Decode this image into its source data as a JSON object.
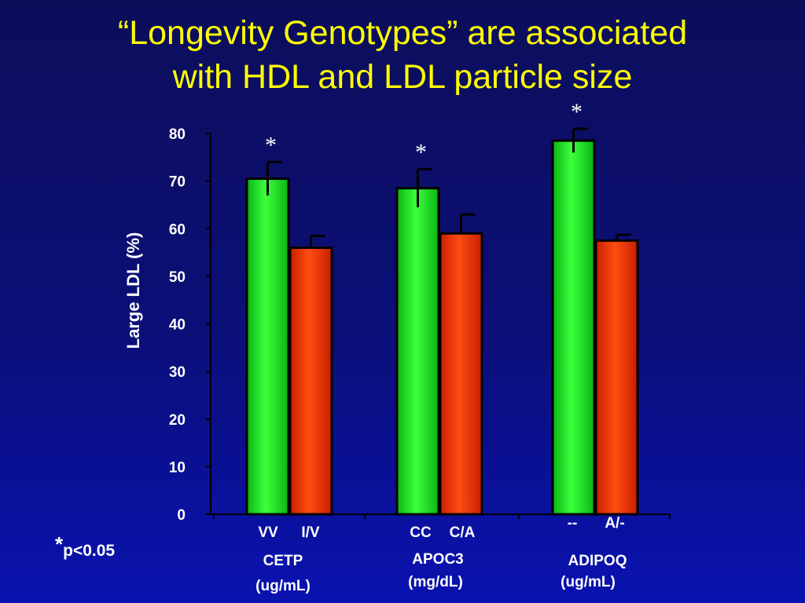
{
  "title_line1": "“Longevity Genotypes” are associated",
  "title_line2": "with HDL and LDL particle size",
  "footnote_star": "*",
  "footnote_text": "p<0.05",
  "colors": {
    "green": "#22e22a",
    "red": "#f03a0a",
    "axis": "#000000",
    "text": "#ffffff",
    "title": "#ffff00"
  },
  "chart_data": {
    "type": "bar",
    "ylabel": "Large LDL (%)",
    "ylim": [
      0,
      80
    ],
    "yticks": [
      0,
      10,
      20,
      30,
      40,
      50,
      60,
      70,
      80
    ],
    "groups": [
      {
        "name": "CETP",
        "unit": "(ug/mL)",
        "bars": [
          {
            "label": "VV",
            "value": 70.5,
            "error": 3.5,
            "color": "green",
            "star": "*"
          },
          {
            "label": "I/V",
            "value": 56,
            "error": 2.5,
            "color": "red",
            "star": ""
          }
        ]
      },
      {
        "name": "APOC3",
        "unit": "(mg/dL)",
        "bars": [
          {
            "label": "CC",
            "value": 68.5,
            "error": 4,
            "color": "green",
            "star": "*"
          },
          {
            "label": "C/A",
            "value": 59,
            "error": 4,
            "color": "red",
            "star": ""
          }
        ]
      },
      {
        "name": "ADIPOQ",
        "unit": "(ug/mL)",
        "bars": [
          {
            "label": "--",
            "value": 78.5,
            "error": 2.5,
            "color": "green",
            "star": "*"
          },
          {
            "label": "A/-",
            "value": 57.5,
            "error": 1.2,
            "color": "red",
            "star": ""
          }
        ]
      }
    ]
  }
}
